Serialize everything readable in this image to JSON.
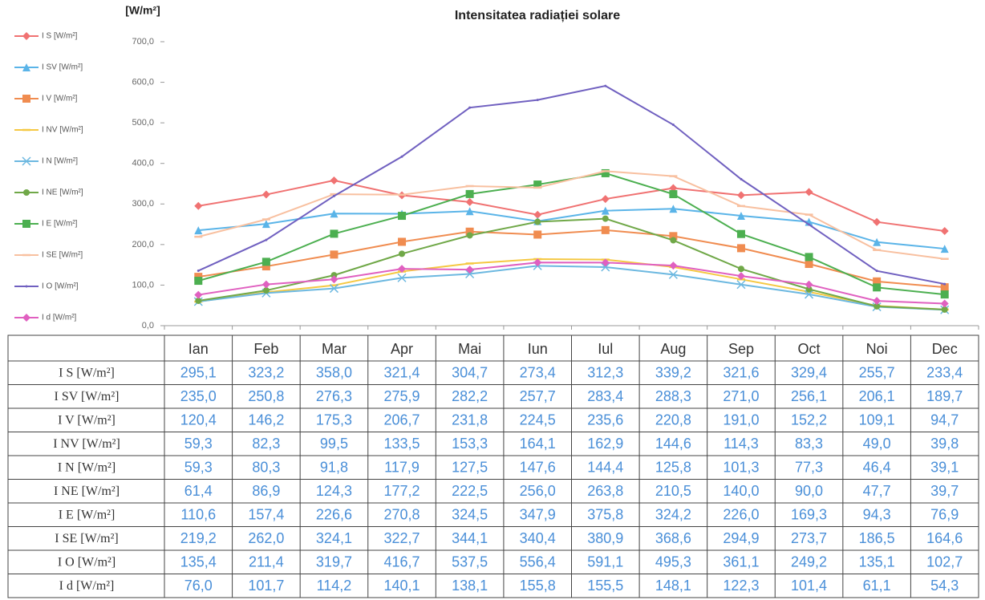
{
  "chart_data": {
    "type": "line",
    "title": "Intensitatea radiației solare",
    "y_label": "[W/m²]",
    "categories": [
      "Ian",
      "Feb",
      "Mar",
      "Apr",
      "Mai",
      "Iun",
      "Iul",
      "Aug",
      "Sep",
      "Oct",
      "Noi",
      "Dec"
    ],
    "ylim": [
      0,
      700
    ],
    "yticks": [
      {
        "value": 0,
        "label": "0,0"
      },
      {
        "value": 100,
        "label": "100,0"
      },
      {
        "value": 200,
        "label": "200,0"
      },
      {
        "value": 300,
        "label": "300,0"
      },
      {
        "value": 400,
        "label": "400,0"
      },
      {
        "value": 500,
        "label": "500,0"
      },
      {
        "value": 600,
        "label": "600,0"
      },
      {
        "value": 700,
        "label": "700,0"
      }
    ],
    "grid": false,
    "legend": "left",
    "series": [
      {
        "name": "I S [W/m²]",
        "color": "#f07272",
        "marker": "diamond",
        "values": [
          295.1,
          323.2,
          358.0,
          321.4,
          304.7,
          273.4,
          312.3,
          339.2,
          321.6,
          329.4,
          255.7,
          233.4
        ],
        "value_labels": [
          "295,1",
          "323,2",
          "358,0",
          "321,4",
          "304,7",
          "273,4",
          "312,3",
          "339,2",
          "321,6",
          "329,4",
          "255,7",
          "233,4"
        ]
      },
      {
        "name": "I SV [W/m²]",
        "color": "#5ab4e8",
        "marker": "triangle",
        "values": [
          235.0,
          250.8,
          276.3,
          275.9,
          282.2,
          257.7,
          283.4,
          288.3,
          271.0,
          256.1,
          206.1,
          189.7
        ],
        "value_labels": [
          "235,0",
          "250,8",
          "276,3",
          "275,9",
          "282,2",
          "257,7",
          "283,4",
          "288,3",
          "271,0",
          "256,1",
          "206,1",
          "189,7"
        ]
      },
      {
        "name": "I V [W/m²]",
        "color": "#f08c50",
        "marker": "square",
        "values": [
          120.4,
          146.2,
          175.3,
          206.7,
          231.8,
          224.5,
          235.6,
          220.8,
          191.0,
          152.2,
          109.1,
          94.7
        ],
        "value_labels": [
          "120,4",
          "146,2",
          "175,3",
          "206,7",
          "231,8",
          "224,5",
          "235,6",
          "220,8",
          "191,0",
          "152,2",
          "109,1",
          "94,7"
        ]
      },
      {
        "name": "I NV [W/m²]",
        "color": "#f5c842",
        "marker": "dash",
        "values": [
          59.3,
          82.3,
          99.5,
          133.5,
          153.3,
          164.1,
          162.9,
          144.6,
          114.3,
          83.3,
          49.0,
          39.8
        ],
        "value_labels": [
          "59,3",
          "82,3",
          "99,5",
          "133,5",
          "153,3",
          "164,1",
          "162,9",
          "144,6",
          "114,3",
          "83,3",
          "49,0",
          "39,8"
        ]
      },
      {
        "name": "I N [W/m²]",
        "color": "#6cb8e0",
        "marker": "x",
        "values": [
          59.3,
          80.3,
          91.8,
          117.9,
          127.5,
          147.6,
          144.4,
          125.8,
          101.3,
          77.3,
          46.4,
          39.1
        ],
        "value_labels": [
          "59,3",
          "80,3",
          "91,8",
          "117,9",
          "127,5",
          "147,6",
          "144,4",
          "125,8",
          "101,3",
          "77,3",
          "46,4",
          "39,1"
        ]
      },
      {
        "name": "I NE [W/m²]",
        "color": "#70a848",
        "marker": "circle",
        "values": [
          61.4,
          86.9,
          124.3,
          177.2,
          222.5,
          256.0,
          263.8,
          210.5,
          140.0,
          90.0,
          47.7,
          39.7
        ],
        "value_labels": [
          "61,4",
          "86,9",
          "124,3",
          "177,2",
          "222,5",
          "256,0",
          "263,8",
          "210,5",
          "140,0",
          "90,0",
          "47,7",
          "39,7"
        ]
      },
      {
        "name": "I E [W/m²]",
        "color": "#4caf50",
        "marker": "square",
        "values": [
          110.6,
          157.4,
          226.6,
          270.8,
          324.5,
          347.9,
          375.8,
          324.2,
          226.0,
          169.3,
          94.3,
          76.9
        ],
        "value_labels": [
          "110,6",
          "157,4",
          "226,6",
          "270,8",
          "324,5",
          "347,9",
          "375,8",
          "324,2",
          "226,0",
          "169,3",
          "94,3",
          "76,9"
        ]
      },
      {
        "name": "I SE [W/m²]",
        "color": "#f8c0a0",
        "marker": "dash",
        "values": [
          219.2,
          262.0,
          324.1,
          322.7,
          344.1,
          340.4,
          380.9,
          368.6,
          294.9,
          273.7,
          186.5,
          164.6
        ],
        "value_labels": [
          "219,2",
          "262,0",
          "324,1",
          "322,7",
          "344,1",
          "340,4",
          "380,9",
          "368,6",
          "294,9",
          "273,7",
          "186,5",
          "164,6"
        ]
      },
      {
        "name": "I O [W/m²]",
        "color": "#7060c0",
        "marker": "dot",
        "values": [
          135.4,
          211.4,
          319.7,
          416.7,
          537.5,
          556.4,
          591.1,
          495.3,
          361.1,
          249.2,
          135.1,
          102.7
        ],
        "value_labels": [
          "135,4",
          "211,4",
          "319,7",
          "416,7",
          "537,5",
          "556,4",
          "591,1",
          "495,3",
          "361,1",
          "249,2",
          "135,1",
          "102,7"
        ]
      },
      {
        "name": "I d [W/m²]",
        "color": "#e060c0",
        "marker": "diamond",
        "values": [
          76.0,
          101.7,
          114.2,
          140.1,
          138.1,
          155.8,
          155.5,
          148.1,
          122.3,
          101.4,
          61.1,
          54.3
        ],
        "value_labels": [
          "76,0",
          "101,7",
          "114,2",
          "140,1",
          "138,1",
          "155,8",
          "155,5",
          "148,1",
          "122,3",
          "101,4",
          "61,1",
          "54,3"
        ]
      }
    ]
  }
}
